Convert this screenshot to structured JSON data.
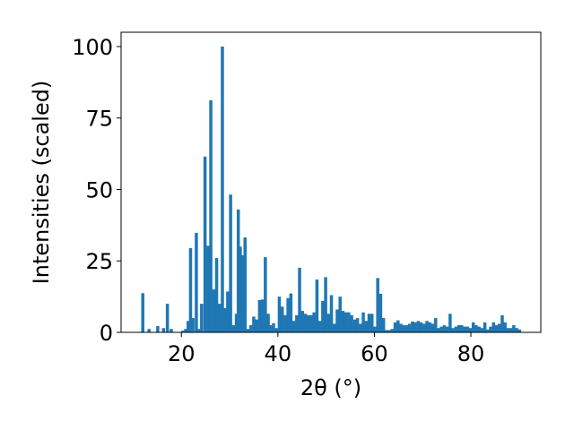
{
  "chart_data": {
    "type": "bar",
    "xlabel": "2θ (°)",
    "ylabel": "Intensities (scaled)",
    "xlim": [
      7.5,
      94.5
    ],
    "ylim": [
      0,
      105
    ],
    "xticks": [
      20,
      40,
      60,
      80
    ],
    "yticks": [
      0,
      25,
      50,
      75,
      100
    ],
    "bar_width": 0.65,
    "color": "#1f77b4",
    "grid": false,
    "x": [
      12.0,
      13.3,
      15.1,
      16.3,
      17.1,
      17.9,
      20.3,
      20.9,
      21.4,
      21.9,
      22.4,
      23.1,
      23.6,
      24.2,
      24.9,
      25.5,
      26.1,
      26.7,
      27.3,
      27.9,
      28.5,
      29.1,
      29.6,
      30.2,
      30.8,
      31.4,
      31.8,
      32.2,
      32.7,
      33.2,
      33.8,
      34.4,
      35.0,
      35.6,
      36.2,
      36.8,
      37.4,
      38.0,
      38.6,
      39.1,
      39.7,
      40.3,
      40.9,
      41.5,
      42.1,
      42.7,
      43.3,
      43.9,
      44.5,
      45.1,
      45.7,
      46.3,
      46.9,
      47.5,
      48.1,
      48.7,
      49.3,
      49.9,
      50.5,
      51.1,
      51.7,
      52.3,
      52.9,
      53.5,
      54.1,
      54.7,
      55.3,
      55.9,
      56.5,
      57.1,
      57.7,
      58.3,
      58.9,
      59.5,
      60.1,
      60.7,
      61.3,
      61.9,
      62.5,
      63.1,
      63.7,
      64.3,
      64.9,
      65.5,
      66.1,
      66.7,
      67.3,
      67.9,
      68.5,
      69.1,
      69.7,
      70.3,
      70.9,
      71.5,
      72.1,
      72.7,
      73.3,
      73.9,
      74.5,
      75.1,
      75.7,
      76.3,
      76.9,
      77.5,
      78.1,
      78.7,
      79.3,
      79.9,
      80.5,
      81.1,
      81.7,
      82.3,
      82.9,
      83.5,
      84.1,
      84.7,
      85.3,
      85.9,
      86.5,
      87.1,
      87.7,
      88.3,
      88.9,
      89.5,
      90.1
    ],
    "values": [
      13.7,
      1.2,
      2.2,
      1.5,
      10.0,
      1.2,
      0.6,
      1.2,
      4.0,
      29.5,
      5.0,
      34.8,
      1.2,
      10.0,
      61.5,
      30.3,
      81.2,
      15.0,
      26.0,
      10.0,
      100.0,
      8.5,
      14.3,
      48.2,
      2.5,
      6.5,
      43.0,
      30.0,
      27.0,
      33.2,
      1.2,
      2.5,
      5.5,
      4.5,
      11.3,
      11.5,
      26.3,
      6.5,
      2.5,
      3.2,
      1.5,
      12.5,
      9.0,
      6.0,
      12.0,
      13.6,
      4.0,
      6.0,
      22.6,
      7.5,
      6.5,
      6.0,
      6.0,
      7.0,
      18.5,
      4.0,
      11.0,
      19.3,
      6.5,
      13.0,
      3.0,
      8.0,
      12.5,
      7.5,
      7.0,
      7.0,
      6.0,
      4.5,
      5.0,
      3.0,
      7.0,
      4.0,
      6.5,
      6.5,
      2.0,
      19.0,
      13.5,
      5.0,
      0.8,
      0.8,
      1.2,
      3.5,
      4.2,
      3.0,
      2.5,
      2.5,
      3.0,
      3.8,
      3.5,
      4.0,
      3.5,
      3.0,
      4.0,
      3.5,
      3.0,
      5.0,
      1.5,
      2.0,
      2.5,
      2.0,
      6.5,
      1.5,
      2.0,
      2.5,
      2.5,
      2.0,
      2.0,
      1.5,
      3.5,
      2.5,
      2.0,
      1.5,
      3.5,
      1.0,
      2.0,
      3.5,
      2.5,
      3.0,
      6.0,
      3.5,
      1.5,
      1.5,
      2.5,
      1.5,
      1.0
    ]
  }
}
